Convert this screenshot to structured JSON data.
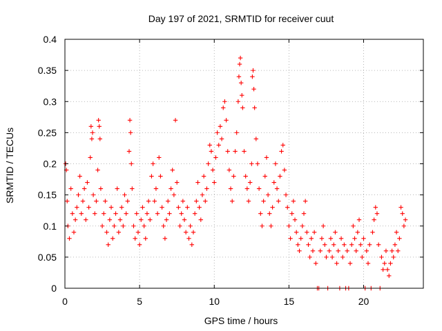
{
  "chart_data": {
    "type": "scatter",
    "title": "Day 197 of 2021, SRMTID for receiver cuut",
    "xlabel": "GPS time / hours",
    "ylabel": "SRMTID / TECUs",
    "xlim": [
      0,
      24
    ],
    "ylim": [
      0,
      0.4
    ],
    "xticks": [
      0,
      5,
      10,
      15,
      20
    ],
    "xtick_labels": [
      "0",
      "5",
      "10",
      "15",
      "20"
    ],
    "yticks": [
      0,
      0.05,
      0.1,
      0.15,
      0.2,
      0.25,
      0.3,
      0.35,
      0.4
    ],
    "ytick_labels": [
      "0",
      "0.05",
      "0.1",
      "0.15",
      "0.2",
      "0.25",
      "0.3",
      "0.35",
      "0.4"
    ],
    "grid": true,
    "marker": "plus",
    "color": "#ff0000",
    "series": [
      {
        "marker": "plus",
        "points": [
          [
            0.05,
            0.2
          ],
          [
            0.1,
            0.19
          ],
          [
            0.15,
            0.14
          ],
          [
            0.2,
            0.1
          ],
          [
            0.3,
            0.08
          ],
          [
            0.4,
            0.16
          ],
          [
            0.5,
            0.12
          ],
          [
            0.6,
            0.09
          ],
          [
            0.7,
            0.11
          ],
          [
            0.8,
            0.13
          ],
          [
            0.9,
            0.15
          ],
          [
            1.0,
            0.18
          ],
          [
            1.1,
            0.12
          ],
          [
            1.2,
            0.14
          ],
          [
            1.3,
            0.16
          ],
          [
            1.4,
            0.11
          ],
          [
            1.5,
            0.17
          ],
          [
            1.6,
            0.13
          ],
          [
            1.7,
            0.21
          ],
          [
            1.75,
            0.26
          ],
          [
            1.8,
            0.24
          ],
          [
            1.85,
            0.25
          ],
          [
            1.9,
            0.15
          ],
          [
            2.0,
            0.12
          ],
          [
            2.1,
            0.14
          ],
          [
            2.2,
            0.19
          ],
          [
            2.25,
            0.27
          ],
          [
            2.3,
            0.26
          ],
          [
            2.35,
            0.24
          ],
          [
            2.4,
            0.16
          ],
          [
            2.5,
            0.1
          ],
          [
            2.6,
            0.12
          ],
          [
            2.7,
            0.14
          ],
          [
            2.8,
            0.09
          ],
          [
            2.9,
            0.07
          ],
          [
            3.0,
            0.11
          ],
          [
            3.1,
            0.13
          ],
          [
            3.2,
            0.08
          ],
          [
            3.3,
            0.1
          ],
          [
            3.4,
            0.12
          ],
          [
            3.5,
            0.16
          ],
          [
            3.6,
            0.09
          ],
          [
            3.7,
            0.11
          ],
          [
            3.8,
            0.13
          ],
          [
            3.9,
            0.1
          ],
          [
            4.0,
            0.15
          ],
          [
            4.1,
            0.12
          ],
          [
            4.2,
            0.14
          ],
          [
            4.3,
            0.22
          ],
          [
            4.35,
            0.27
          ],
          [
            4.4,
            0.25
          ],
          [
            4.45,
            0.2
          ],
          [
            4.5,
            0.16
          ],
          [
            4.6,
            0.1
          ],
          [
            4.7,
            0.08
          ],
          [
            4.8,
            0.12
          ],
          [
            4.9,
            0.09
          ],
          [
            5.0,
            0.07
          ],
          [
            5.1,
            0.11
          ],
          [
            5.2,
            0.13
          ],
          [
            5.3,
            0.1
          ],
          [
            5.4,
            0.08
          ],
          [
            5.5,
            0.12
          ],
          [
            5.6,
            0.14
          ],
          [
            5.7,
            0.11
          ],
          [
            5.8,
            0.18
          ],
          [
            5.9,
            0.2
          ],
          [
            6.0,
            0.14
          ],
          [
            6.1,
            0.16
          ],
          [
            6.2,
            0.12
          ],
          [
            6.3,
            0.21
          ],
          [
            6.4,
            0.18
          ],
          [
            6.5,
            0.13
          ],
          [
            6.6,
            0.1
          ],
          [
            6.7,
            0.08
          ],
          [
            6.8,
            0.11
          ],
          [
            6.9,
            0.14
          ],
          [
            7.0,
            0.12
          ],
          [
            7.1,
            0.16
          ],
          [
            7.2,
            0.19
          ],
          [
            7.3,
            0.15
          ],
          [
            7.4,
            0.27
          ],
          [
            7.5,
            0.17
          ],
          [
            7.6,
            0.13
          ],
          [
            7.7,
            0.1
          ],
          [
            7.8,
            0.12
          ],
          [
            7.9,
            0.14
          ],
          [
            8.0,
            0.11
          ],
          [
            8.1,
            0.09
          ],
          [
            8.2,
            0.13
          ],
          [
            8.3,
            0.08
          ],
          [
            8.4,
            0.1
          ],
          [
            8.5,
            0.07
          ],
          [
            8.6,
            0.09
          ],
          [
            8.7,
            0.12
          ],
          [
            8.8,
            0.14
          ],
          [
            8.9,
            0.17
          ],
          [
            9.0,
            0.13
          ],
          [
            9.1,
            0.11
          ],
          [
            9.2,
            0.15
          ],
          [
            9.3,
            0.18
          ],
          [
            9.4,
            0.14
          ],
          [
            9.5,
            0.16
          ],
          [
            9.6,
            0.2
          ],
          [
            9.7,
            0.23
          ],
          [
            9.8,
            0.22
          ],
          [
            9.9,
            0.19
          ],
          [
            10.0,
            0.17
          ],
          [
            10.1,
            0.21
          ],
          [
            10.2,
            0.25
          ],
          [
            10.3,
            0.23
          ],
          [
            10.4,
            0.26
          ],
          [
            10.5,
            0.24
          ],
          [
            10.6,
            0.29
          ],
          [
            10.7,
            0.3
          ],
          [
            10.8,
            0.27
          ],
          [
            10.9,
            0.22
          ],
          [
            11.0,
            0.19
          ],
          [
            11.1,
            0.16
          ],
          [
            11.2,
            0.14
          ],
          [
            11.3,
            0.18
          ],
          [
            11.4,
            0.22
          ],
          [
            11.5,
            0.25
          ],
          [
            11.6,
            0.3
          ],
          [
            11.65,
            0.34
          ],
          [
            11.7,
            0.36
          ],
          [
            11.75,
            0.37
          ],
          [
            11.8,
            0.33
          ],
          [
            11.85,
            0.31
          ],
          [
            11.9,
            0.29
          ],
          [
            12.0,
            0.22
          ],
          [
            12.1,
            0.18
          ],
          [
            12.2,
            0.16
          ],
          [
            12.3,
            0.14
          ],
          [
            12.4,
            0.17
          ],
          [
            12.5,
            0.2
          ],
          [
            12.55,
            0.34
          ],
          [
            12.6,
            0.35
          ],
          [
            12.65,
            0.32
          ],
          [
            12.7,
            0.29
          ],
          [
            12.8,
            0.24
          ],
          [
            12.9,
            0.2
          ],
          [
            13.0,
            0.16
          ],
          [
            13.1,
            0.12
          ],
          [
            13.2,
            0.1
          ],
          [
            13.3,
            0.14
          ],
          [
            13.4,
            0.18
          ],
          [
            13.5,
            0.21
          ],
          [
            13.6,
            0.15
          ],
          [
            13.7,
            0.12
          ],
          [
            13.8,
            0.1
          ],
          [
            13.9,
            0.13
          ],
          [
            14.0,
            0.17
          ],
          [
            14.1,
            0.2
          ],
          [
            14.2,
            0.16
          ],
          [
            14.3,
            0.14
          ],
          [
            14.4,
            0.18
          ],
          [
            14.5,
            0.22
          ],
          [
            14.6,
            0.23
          ],
          [
            14.7,
            0.19
          ],
          [
            14.8,
            0.15
          ],
          [
            14.9,
            0.13
          ],
          [
            15.0,
            0.1
          ],
          [
            15.1,
            0.08
          ],
          [
            15.2,
            0.12
          ],
          [
            15.3,
            0.14
          ],
          [
            15.4,
            0.11
          ],
          [
            15.5,
            0.09
          ],
          [
            15.6,
            0.07
          ],
          [
            15.7,
            0.06
          ],
          [
            15.8,
            0.08
          ],
          [
            15.9,
            0.1
          ],
          [
            16.0,
            0.12
          ],
          [
            16.1,
            0.14
          ],
          [
            16.2,
            0.09
          ],
          [
            16.3,
            0.07
          ],
          [
            16.4,
            0.05
          ],
          [
            16.5,
            0.08
          ],
          [
            16.6,
            0.06
          ],
          [
            16.7,
            0.09
          ],
          [
            16.8,
            0.04
          ],
          [
            16.9,
            0.0
          ],
          [
            17.0,
            0.0
          ],
          [
            17.1,
            0.06
          ],
          [
            17.2,
            0.08
          ],
          [
            17.3,
            0.1
          ],
          [
            17.4,
            0.07
          ],
          [
            17.5,
            0.05
          ],
          [
            17.6,
            0.0
          ],
          [
            17.7,
            0.06
          ],
          [
            17.8,
            0.08
          ],
          [
            17.9,
            0.05
          ],
          [
            18.0,
            0.07
          ],
          [
            18.1,
            0.09
          ],
          [
            18.2,
            0.04
          ],
          [
            18.3,
            0.06
          ],
          [
            18.4,
            0.0
          ],
          [
            18.5,
            0.08
          ],
          [
            18.6,
            0.05
          ],
          [
            18.7,
            0.07
          ],
          [
            18.8,
            0.0
          ],
          [
            18.9,
            0.06
          ],
          [
            19.0,
            0.0
          ],
          [
            19.1,
            0.04
          ],
          [
            19.2,
            0.07
          ],
          [
            19.3,
            0.1
          ],
          [
            19.4,
            0.08
          ],
          [
            19.5,
            0.06
          ],
          [
            19.6,
            0.09
          ],
          [
            19.7,
            0.11
          ],
          [
            19.8,
            0.07
          ],
          [
            19.9,
            0.05
          ],
          [
            20.0,
            0.08
          ],
          [
            20.1,
            0.0
          ],
          [
            20.2,
            0.06
          ],
          [
            20.3,
            0.04
          ],
          [
            20.4,
            0.07
          ],
          [
            20.5,
            0.0
          ],
          [
            20.6,
            0.09
          ],
          [
            20.7,
            0.11
          ],
          [
            20.8,
            0.13
          ],
          [
            20.9,
            0.12
          ],
          [
            21.0,
            0.07
          ],
          [
            21.1,
            0.0
          ],
          [
            21.2,
            0.05
          ],
          [
            21.3,
            0.03
          ],
          [
            21.4,
            0.04
          ],
          [
            21.5,
            0.06
          ],
          [
            21.6,
            0.03
          ],
          [
            21.7,
            0.02
          ],
          [
            21.8,
            0.04
          ],
          [
            21.9,
            0.06
          ],
          [
            22.0,
            0.05
          ],
          [
            22.1,
            0.07
          ],
          [
            22.2,
            0.09
          ],
          [
            22.3,
            0.06
          ],
          [
            22.4,
            0.08
          ],
          [
            22.5,
            0.13
          ],
          [
            22.6,
            0.12
          ],
          [
            22.7,
            0.1
          ],
          [
            22.8,
            0.11
          ]
        ]
      }
    ]
  }
}
